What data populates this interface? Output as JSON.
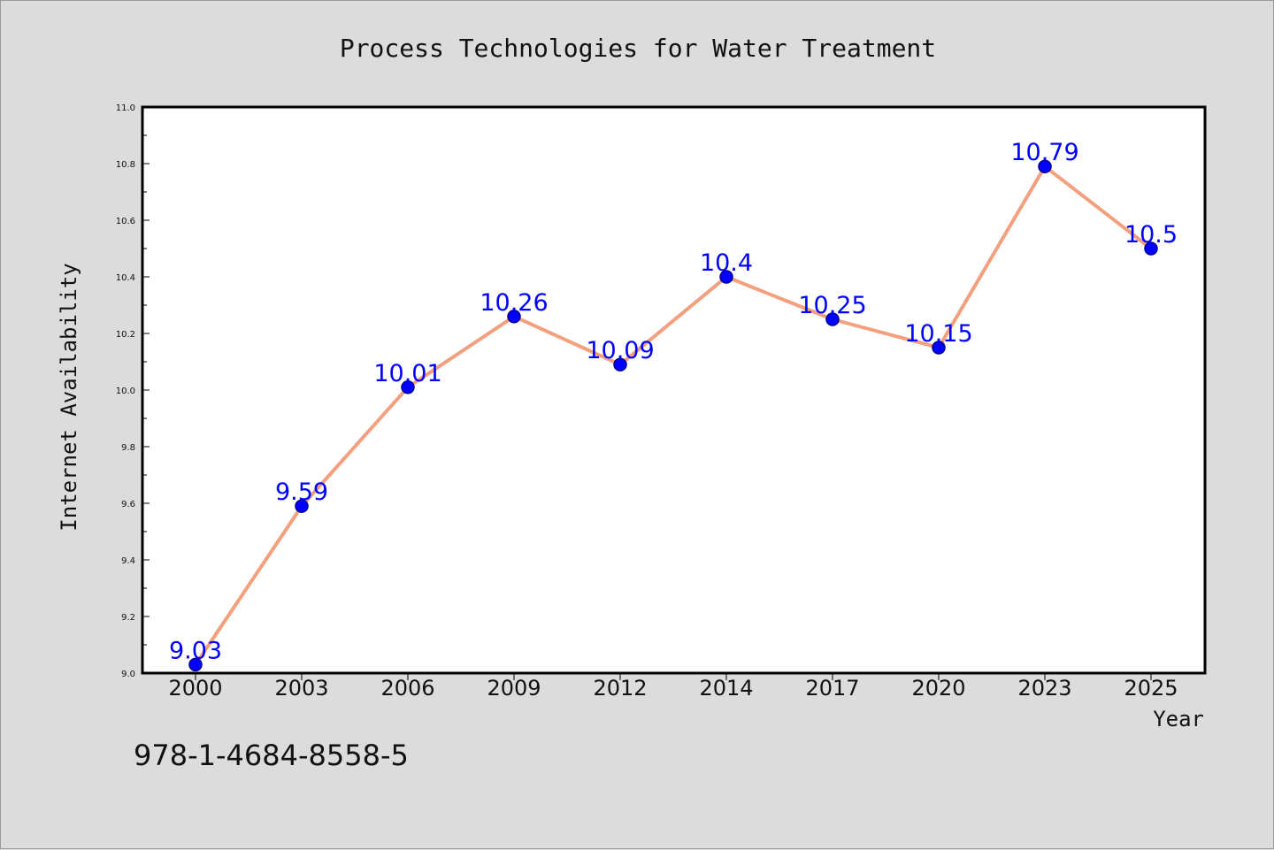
{
  "chart_data": {
    "type": "line",
    "title": "Process Technologies for Water Treatment",
    "xlabel": "Year",
    "ylabel": "Internet Availability",
    "categories": [
      "2000",
      "2003",
      "2006",
      "2009",
      "2012",
      "2014",
      "2017",
      "2020",
      "2023",
      "2025"
    ],
    "values": [
      9.03,
      9.59,
      10.01,
      10.26,
      10.09,
      10.4,
      10.25,
      10.15,
      10.79,
      10.5
    ],
    "data_labels": [
      "9.03",
      "9.59",
      "10.01",
      "10.26",
      "10.09",
      "10.4",
      "10.25",
      "10.15",
      "10.79",
      "10.5"
    ],
    "ylim": [
      9.0,
      11.0
    ],
    "yticks": [
      "9.0",
      "9.2",
      "9.4",
      "9.6",
      "9.8",
      "10.0",
      "10.2",
      "10.4",
      "10.6",
      "10.8",
      "11.0"
    ],
    "grid": false,
    "legend": "none",
    "colors": {
      "line": "#f4a07f",
      "marker": "#0000ff",
      "marker_edge": "#00008b",
      "data_label": "#0000ff",
      "plot_bg": "#ffffff",
      "figure_bg": "#dcdcdc"
    }
  },
  "caption": "978-1-4684-8558-5"
}
